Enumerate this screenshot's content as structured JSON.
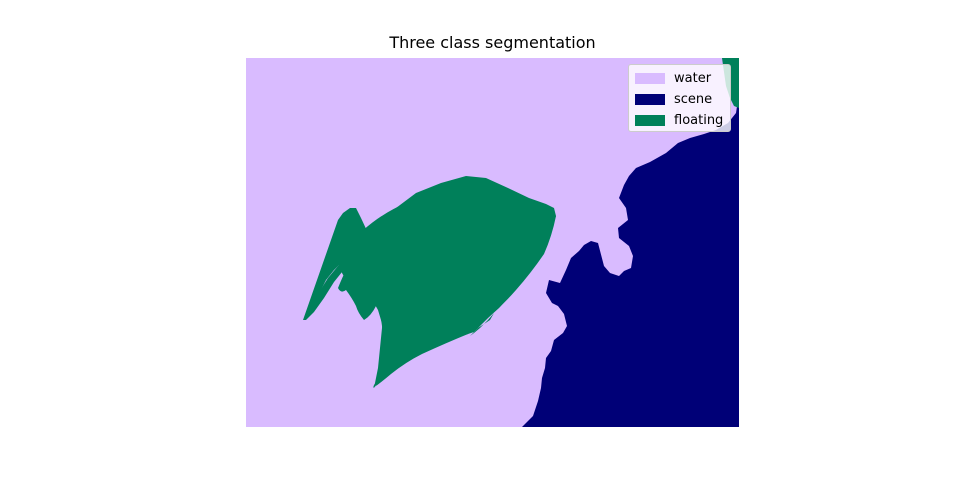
{
  "figure": {
    "title": "Three class segmentation"
  },
  "legend": {
    "placement": "top-right",
    "items": [
      {
        "label": "water",
        "color": "#d9bbff"
      },
      {
        "label": "scene",
        "color": "#000077"
      },
      {
        "label": "floating",
        "color": "#00805a"
      }
    ]
  },
  "colors": {
    "water": "#d9bbff",
    "scene": "#000077",
    "floating": "#00805a"
  }
}
